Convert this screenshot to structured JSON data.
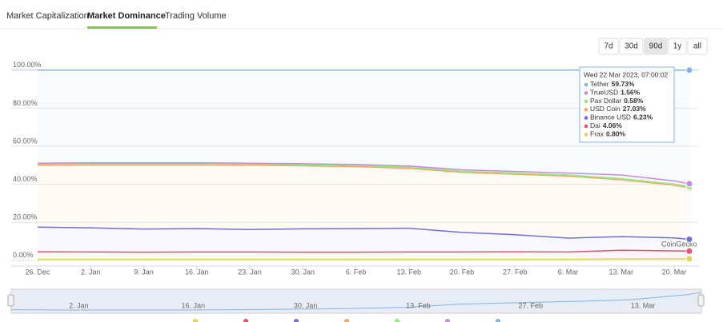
{
  "tabs": [
    "Market Capitalization",
    "Market Dominance",
    "Trading Volume"
  ],
  "active_tab": 1,
  "range_buttons": [
    "7d",
    "30d",
    "90d",
    "1y",
    "all"
  ],
  "active_range": 2,
  "chart_data": {
    "type": "area",
    "stacked": true,
    "categories": [
      "26. Dec",
      "2. Jan",
      "9. Jan",
      "16. Jan",
      "23. Jan",
      "30. Jan",
      "6. Feb",
      "13. Feb",
      "20. Feb",
      "27. Feb",
      "6. Mar",
      "13. Mar",
      "20. Mar",
      null
    ],
    "series": [
      {
        "name": "Tether",
        "color": "#7cb5ec",
        "values": [
          48.9,
          48.7,
          48.7,
          48.7,
          48.9,
          49.2,
          49.6,
          50.4,
          52.4,
          53.3,
          54.1,
          55.1,
          58.22,
          59.73
        ],
        "value_labels": [
          null,
          null,
          null,
          null,
          null,
          null,
          null,
          null,
          null,
          null,
          null,
          null,
          null,
          "59.73%"
        ]
      },
      {
        "name": "TrueUSD",
        "color": "#c58be0",
        "values": [
          0.5,
          0.5,
          0.5,
          0.5,
          0.5,
          0.5,
          0.5,
          0.6,
          0.7,
          0.8,
          1.0,
          1.9,
          1.7,
          1.56
        ],
        "value_labels": [
          null,
          null,
          null,
          null,
          null,
          null,
          null,
          null,
          null,
          null,
          null,
          null,
          null,
          "1.56%"
        ]
      },
      {
        "name": "Pax Dollar",
        "color": "#90ed7d",
        "values": [
          0.6,
          0.6,
          0.6,
          0.6,
          0.6,
          0.6,
          0.6,
          0.6,
          0.6,
          0.6,
          0.6,
          0.6,
          0.58,
          0.58
        ],
        "value_labels": [
          null,
          null,
          null,
          null,
          null,
          null,
          null,
          null,
          null,
          null,
          null,
          null,
          null,
          "0.58%"
        ]
      },
      {
        "name": "USD Coin",
        "color": "#f7a35c",
        "values": [
          32.5,
          33.1,
          33.7,
          33.5,
          33.8,
          33.1,
          32.6,
          31.5,
          31.6,
          31.8,
          32.6,
          29.9,
          27.7,
          27.03
        ],
        "value_labels": [
          null,
          null,
          null,
          null,
          null,
          null,
          null,
          null,
          null,
          null,
          null,
          null,
          null,
          "27.03%"
        ]
      },
      {
        "name": "Binance USD",
        "color": "#7070d8",
        "values": [
          13.0,
          12.7,
          12.2,
          12.3,
          11.8,
          12.3,
          12.4,
          12.5,
          10.3,
          9.0,
          7.3,
          7.2,
          6.8,
          6.23
        ],
        "value_labels": [
          null,
          null,
          null,
          null,
          null,
          null,
          null,
          null,
          null,
          null,
          null,
          null,
          null,
          "6.23%"
        ]
      },
      {
        "name": "Dai",
        "color": "#e8506e",
        "values": [
          4.0,
          3.9,
          3.8,
          3.9,
          3.9,
          3.8,
          3.8,
          3.9,
          3.9,
          4.0,
          3.9,
          4.6,
          4.2,
          4.06
        ],
        "value_labels": [
          null,
          null,
          null,
          null,
          null,
          null,
          null,
          null,
          null,
          null,
          null,
          null,
          null,
          "4.06%"
        ]
      },
      {
        "name": "Frax",
        "color": "#e4d354",
        "values": [
          0.5,
          0.5,
          0.5,
          0.5,
          0.5,
          0.5,
          0.5,
          0.5,
          0.5,
          0.5,
          0.5,
          0.7,
          0.8,
          0.8
        ],
        "value_labels": [
          null,
          null,
          null,
          null,
          null,
          null,
          null,
          null,
          null,
          null,
          null,
          null,
          null,
          "0.80%"
        ]
      }
    ],
    "ylim": [
      -3,
      102
    ],
    "yticks": [
      {
        "value": 0,
        "label": "0.00%"
      },
      {
        "value": 20,
        "label": "20.00%"
      },
      {
        "value": 40,
        "label": "40.00%"
      },
      {
        "value": 60,
        "label": "60.00%"
      },
      {
        "value": 80,
        "label": "80.00%"
      },
      {
        "value": 100,
        "label": "100.00%"
      }
    ],
    "grid": true,
    "tooltip_title": "Wed 22 Mar 2023, 07:00:02",
    "watermark": "CoinGecko"
  }
}
